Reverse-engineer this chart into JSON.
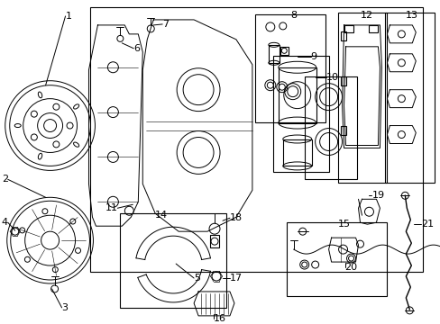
{
  "bg_color": "#ffffff",
  "line_color": "#000000",
  "boxes": {
    "main": [
      100,
      8,
      370,
      295
    ],
    "b8": [
      283,
      16,
      78,
      120
    ],
    "b9": [
      303,
      62,
      62,
      130
    ],
    "b10": [
      338,
      85,
      58,
      115
    ],
    "b12": [
      375,
      14,
      55,
      190
    ],
    "b13": [
      428,
      14,
      55,
      190
    ],
    "b14": [
      133,
      238,
      118,
      105
    ],
    "b15": [
      318,
      248,
      112,
      82
    ]
  },
  "labels": {
    "1": [
      50,
      95,
      72,
      18
    ],
    "2": [
      50,
      220,
      8,
      200
    ],
    "3": [
      57,
      322,
      68,
      343
    ],
    "4": [
      16,
      257,
      8,
      248
    ],
    "5": [
      195,
      294,
      215,
      310
    ],
    "6": [
      135,
      48,
      148,
      54
    ],
    "7": [
      170,
      28,
      180,
      27
    ],
    "8": [
      323,
      17,
      323,
      17
    ],
    "9": [
      330,
      63,
      345,
      63
    ],
    "10": [
      350,
      86,
      362,
      86
    ],
    "11": [
      147,
      228,
      130,
      232
    ],
    "12": [
      400,
      17,
      400,
      17
    ],
    "13": [
      450,
      17,
      450,
      17
    ],
    "14": [
      172,
      240,
      172,
      240
    ],
    "15": [
      375,
      250,
      375,
      250
    ],
    "16": [
      237,
      350,
      237,
      355
    ],
    "17": [
      247,
      310,
      255,
      310
    ],
    "18": [
      247,
      246,
      255,
      243
    ],
    "19": [
      410,
      218,
      413,
      218
    ],
    "20": [
      383,
      293,
      383,
      298
    ],
    "21": [
      460,
      250,
      468,
      250
    ]
  }
}
